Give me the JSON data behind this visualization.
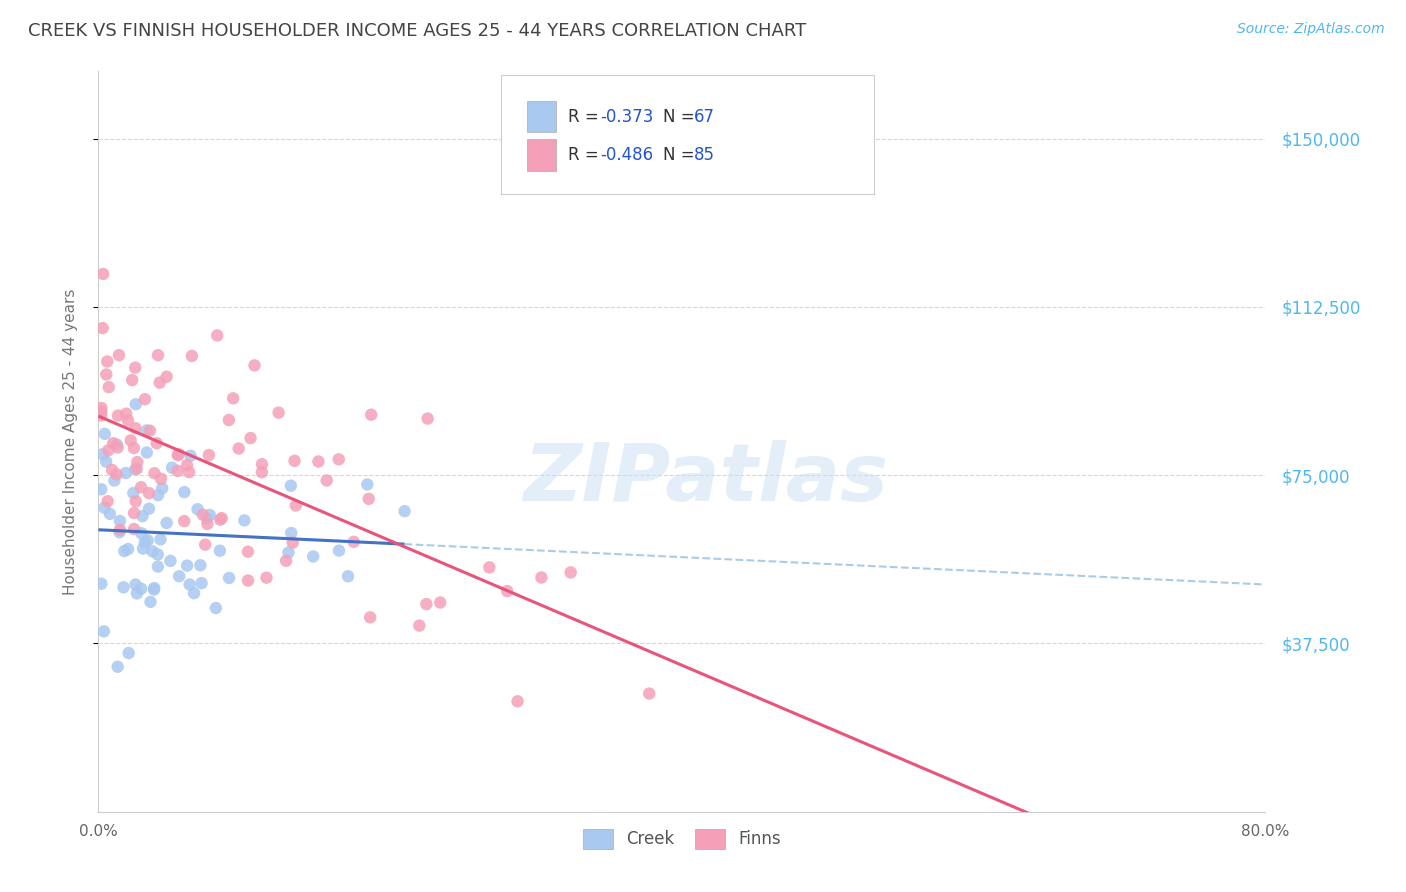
{
  "title": "CREEK VS FINNISH HOUSEHOLDER INCOME AGES 25 - 44 YEARS CORRELATION CHART",
  "source": "Source: ZipAtlas.com",
  "ylabel_label": "Householder Income Ages 25 - 44 years",
  "ytick_labels": [
    "$37,500",
    "$75,000",
    "$112,500",
    "$150,000"
  ],
  "ytick_values": [
    37500,
    75000,
    112500,
    150000
  ],
  "ymin": 0,
  "ymax": 165000,
  "xmin": 0.0,
  "xmax": 0.8,
  "creek_color": "#a8c8f0",
  "creek_line_color": "#4472c4",
  "finns_color": "#f4a0b8",
  "finns_line_color": "#e8547a",
  "dashed_line_color": "#a8cce8",
  "watermark_text": "ZIPatlas",
  "creek_R": -0.373,
  "creek_N": 67,
  "finns_R": -0.486,
  "finns_N": 85,
  "background_color": "#ffffff",
  "grid_color": "#cccccc",
  "title_color": "#555555",
  "axis_label_color": "#777777",
  "tick_color_right": "#4db8f0",
  "legend_label_creek": "Creek",
  "legend_label_finns": "Finns"
}
